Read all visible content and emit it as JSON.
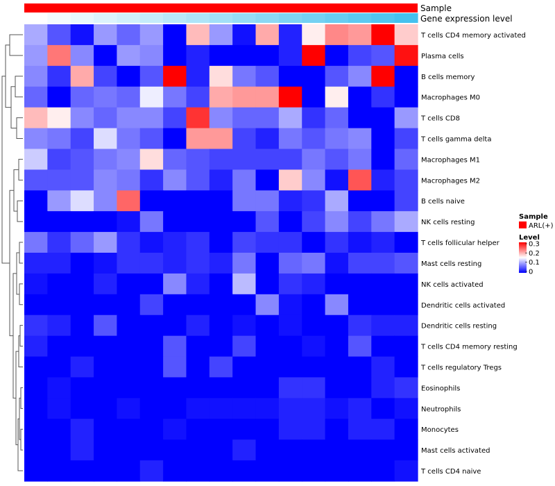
{
  "chart_data": {
    "type": "heatmap",
    "annotation_tracks": [
      {
        "name": "Sample",
        "colors": "uniform",
        "color": "#ff0000"
      },
      {
        "name": "Gene expression level",
        "colors": "gradient",
        "from": "#ffffff",
        "to": "#45c1ee"
      }
    ],
    "rows": [
      "T cells CD4 memory activated",
      "Plasma cells",
      "B cells memory",
      "Macrophages M0",
      "T cells CD8",
      "T cells gamma delta",
      "Macrophages M1",
      "Macrophages M2",
      "B cells naive",
      "NK cells resting",
      "T cells follicular helper",
      "Mast cells resting",
      "NK cells activated",
      "Dendritic cells activated",
      "Dendritic cells resting",
      "T cells CD4 memory resting",
      "T cells regulatory  Tregs",
      "Eosinophils",
      "Neutrophils",
      "Monocytes",
      "Mast cells activated",
      "T cells CD4 naive"
    ],
    "n_columns": 17,
    "values": [
      [
        0.1,
        0.05,
        0.01,
        0.09,
        0.06,
        0.09,
        0.0,
        0.19,
        0.09,
        0.01,
        0.2,
        0.02,
        0.16,
        0.22,
        0.21,
        0.3,
        0.18
      ],
      [
        0.09,
        0.23,
        0.08,
        0.0,
        0.09,
        0.08,
        0.0,
        0.02,
        0.0,
        0.0,
        0.0,
        0.02,
        0.3,
        0.0,
        0.04,
        0.05,
        0.29
      ],
      [
        0.08,
        0.03,
        0.2,
        0.04,
        0.0,
        0.05,
        0.3,
        0.02,
        0.17,
        0.07,
        0.05,
        0.0,
        0.0,
        0.05,
        0.08,
        0.3,
        0.0
      ],
      [
        0.06,
        0.0,
        0.06,
        0.07,
        0.06,
        0.14,
        0.07,
        0.04,
        0.2,
        0.21,
        0.21,
        0.3,
        0.0,
        0.16,
        0.0,
        0.03,
        0.0
      ],
      [
        0.19,
        0.16,
        0.08,
        0.06,
        0.08,
        0.08,
        0.04,
        0.27,
        0.08,
        0.06,
        0.06,
        0.1,
        0.03,
        0.06,
        0.0,
        0.0,
        0.09
      ],
      [
        0.08,
        0.07,
        0.04,
        0.13,
        0.07,
        0.05,
        0.0,
        0.21,
        0.21,
        0.04,
        0.02,
        0.07,
        0.05,
        0.07,
        0.08,
        0.0,
        0.04
      ],
      [
        0.12,
        0.04,
        0.05,
        0.07,
        0.08,
        0.17,
        0.06,
        0.05,
        0.04,
        0.04,
        0.04,
        0.04,
        0.07,
        0.05,
        0.07,
        0.0,
        0.06
      ],
      [
        0.05,
        0.05,
        0.05,
        0.08,
        0.07,
        0.03,
        0.08,
        0.05,
        0.02,
        0.07,
        0.0,
        0.18,
        0.08,
        0.01,
        0.25,
        0.02,
        0.04
      ],
      [
        0.0,
        0.09,
        0.13,
        0.08,
        0.24,
        0.0,
        0.0,
        0.0,
        0.0,
        0.07,
        0.07,
        0.02,
        0.03,
        0.1,
        0.0,
        0.0,
        0.04
      ],
      [
        0.0,
        0.0,
        0.0,
        0.0,
        0.01,
        0.07,
        0.0,
        0.0,
        0.0,
        0.0,
        0.05,
        0.0,
        0.04,
        0.08,
        0.04,
        0.07,
        0.1
      ],
      [
        0.07,
        0.03,
        0.06,
        0.09,
        0.03,
        0.01,
        0.02,
        0.03,
        0.0,
        0.04,
        0.03,
        0.03,
        0.0,
        0.03,
        0.01,
        0.02,
        0.0
      ],
      [
        0.02,
        0.02,
        0.0,
        0.01,
        0.03,
        0.03,
        0.02,
        0.03,
        0.02,
        0.07,
        0.0,
        0.06,
        0.07,
        0.01,
        0.04,
        0.04,
        0.05
      ],
      [
        0.01,
        0.0,
        0.0,
        0.02,
        0.0,
        0.0,
        0.08,
        0.02,
        0.0,
        0.11,
        0.0,
        0.03,
        0.02,
        0.0,
        0.0,
        0.0,
        0.0
      ],
      [
        0.0,
        0.0,
        0.0,
        0.0,
        0.0,
        0.04,
        0.0,
        0.0,
        0.0,
        0.0,
        0.08,
        0.01,
        0.0,
        0.08,
        0.0,
        0.0,
        0.0
      ],
      [
        0.03,
        0.02,
        0.0,
        0.05,
        0.0,
        0.0,
        0.0,
        0.02,
        0.0,
        0.01,
        0.0,
        0.01,
        0.0,
        0.0,
        0.03,
        0.02,
        0.02
      ],
      [
        0.02,
        0.0,
        0.0,
        0.0,
        0.0,
        0.0,
        0.05,
        0.0,
        0.0,
        0.04,
        0.0,
        0.0,
        0.01,
        0.0,
        0.05,
        0.0,
        0.0
      ],
      [
        0.0,
        0.0,
        0.02,
        0.0,
        0.0,
        0.0,
        0.05,
        0.0,
        0.04,
        0.0,
        0.0,
        0.0,
        0.0,
        0.0,
        0.0,
        0.02,
        0.0
      ],
      [
        0.0,
        0.01,
        0.0,
        0.0,
        0.0,
        0.0,
        0.0,
        0.0,
        0.0,
        0.0,
        0.0,
        0.03,
        0.03,
        0.0,
        0.0,
        0.02,
        0.03
      ],
      [
        0.0,
        0.01,
        0.0,
        0.0,
        0.01,
        0.0,
        0.0,
        0.01,
        0.01,
        0.01,
        0.01,
        0.02,
        0.02,
        0.01,
        0.02,
        0.0,
        0.01
      ],
      [
        0.0,
        0.0,
        0.02,
        0.0,
        0.0,
        0.0,
        0.01,
        0.0,
        0.0,
        0.0,
        0.0,
        0.02,
        0.02,
        0.0,
        0.02,
        0.02,
        0.0
      ],
      [
        0.0,
        0.0,
        0.02,
        0.0,
        0.0,
        0.0,
        0.0,
        0.0,
        0.0,
        0.02,
        0.0,
        0.0,
        0.0,
        0.0,
        0.0,
        0.0,
        0.0
      ],
      [
        0.0,
        0.0,
        0.0,
        0.0,
        0.0,
        0.02,
        0.0,
        0.0,
        0.0,
        0.0,
        0.0,
        0.0,
        0.0,
        0.0,
        0.0,
        0.0,
        0.01
      ]
    ],
    "color_scale": {
      "min": 0,
      "max": 0.3,
      "colors": [
        "#0000ff",
        "#ffffff",
        "#ff0000"
      ]
    },
    "legend": {
      "placement": "right",
      "sample_title": "Sample",
      "sample_entry": "ARL(+)",
      "sample_color": "#ff0000",
      "level_title": "Level",
      "level_ticks": [
        "0.3",
        "0.2",
        "0.1",
        "0"
      ]
    },
    "row_dendrogram": true
  }
}
